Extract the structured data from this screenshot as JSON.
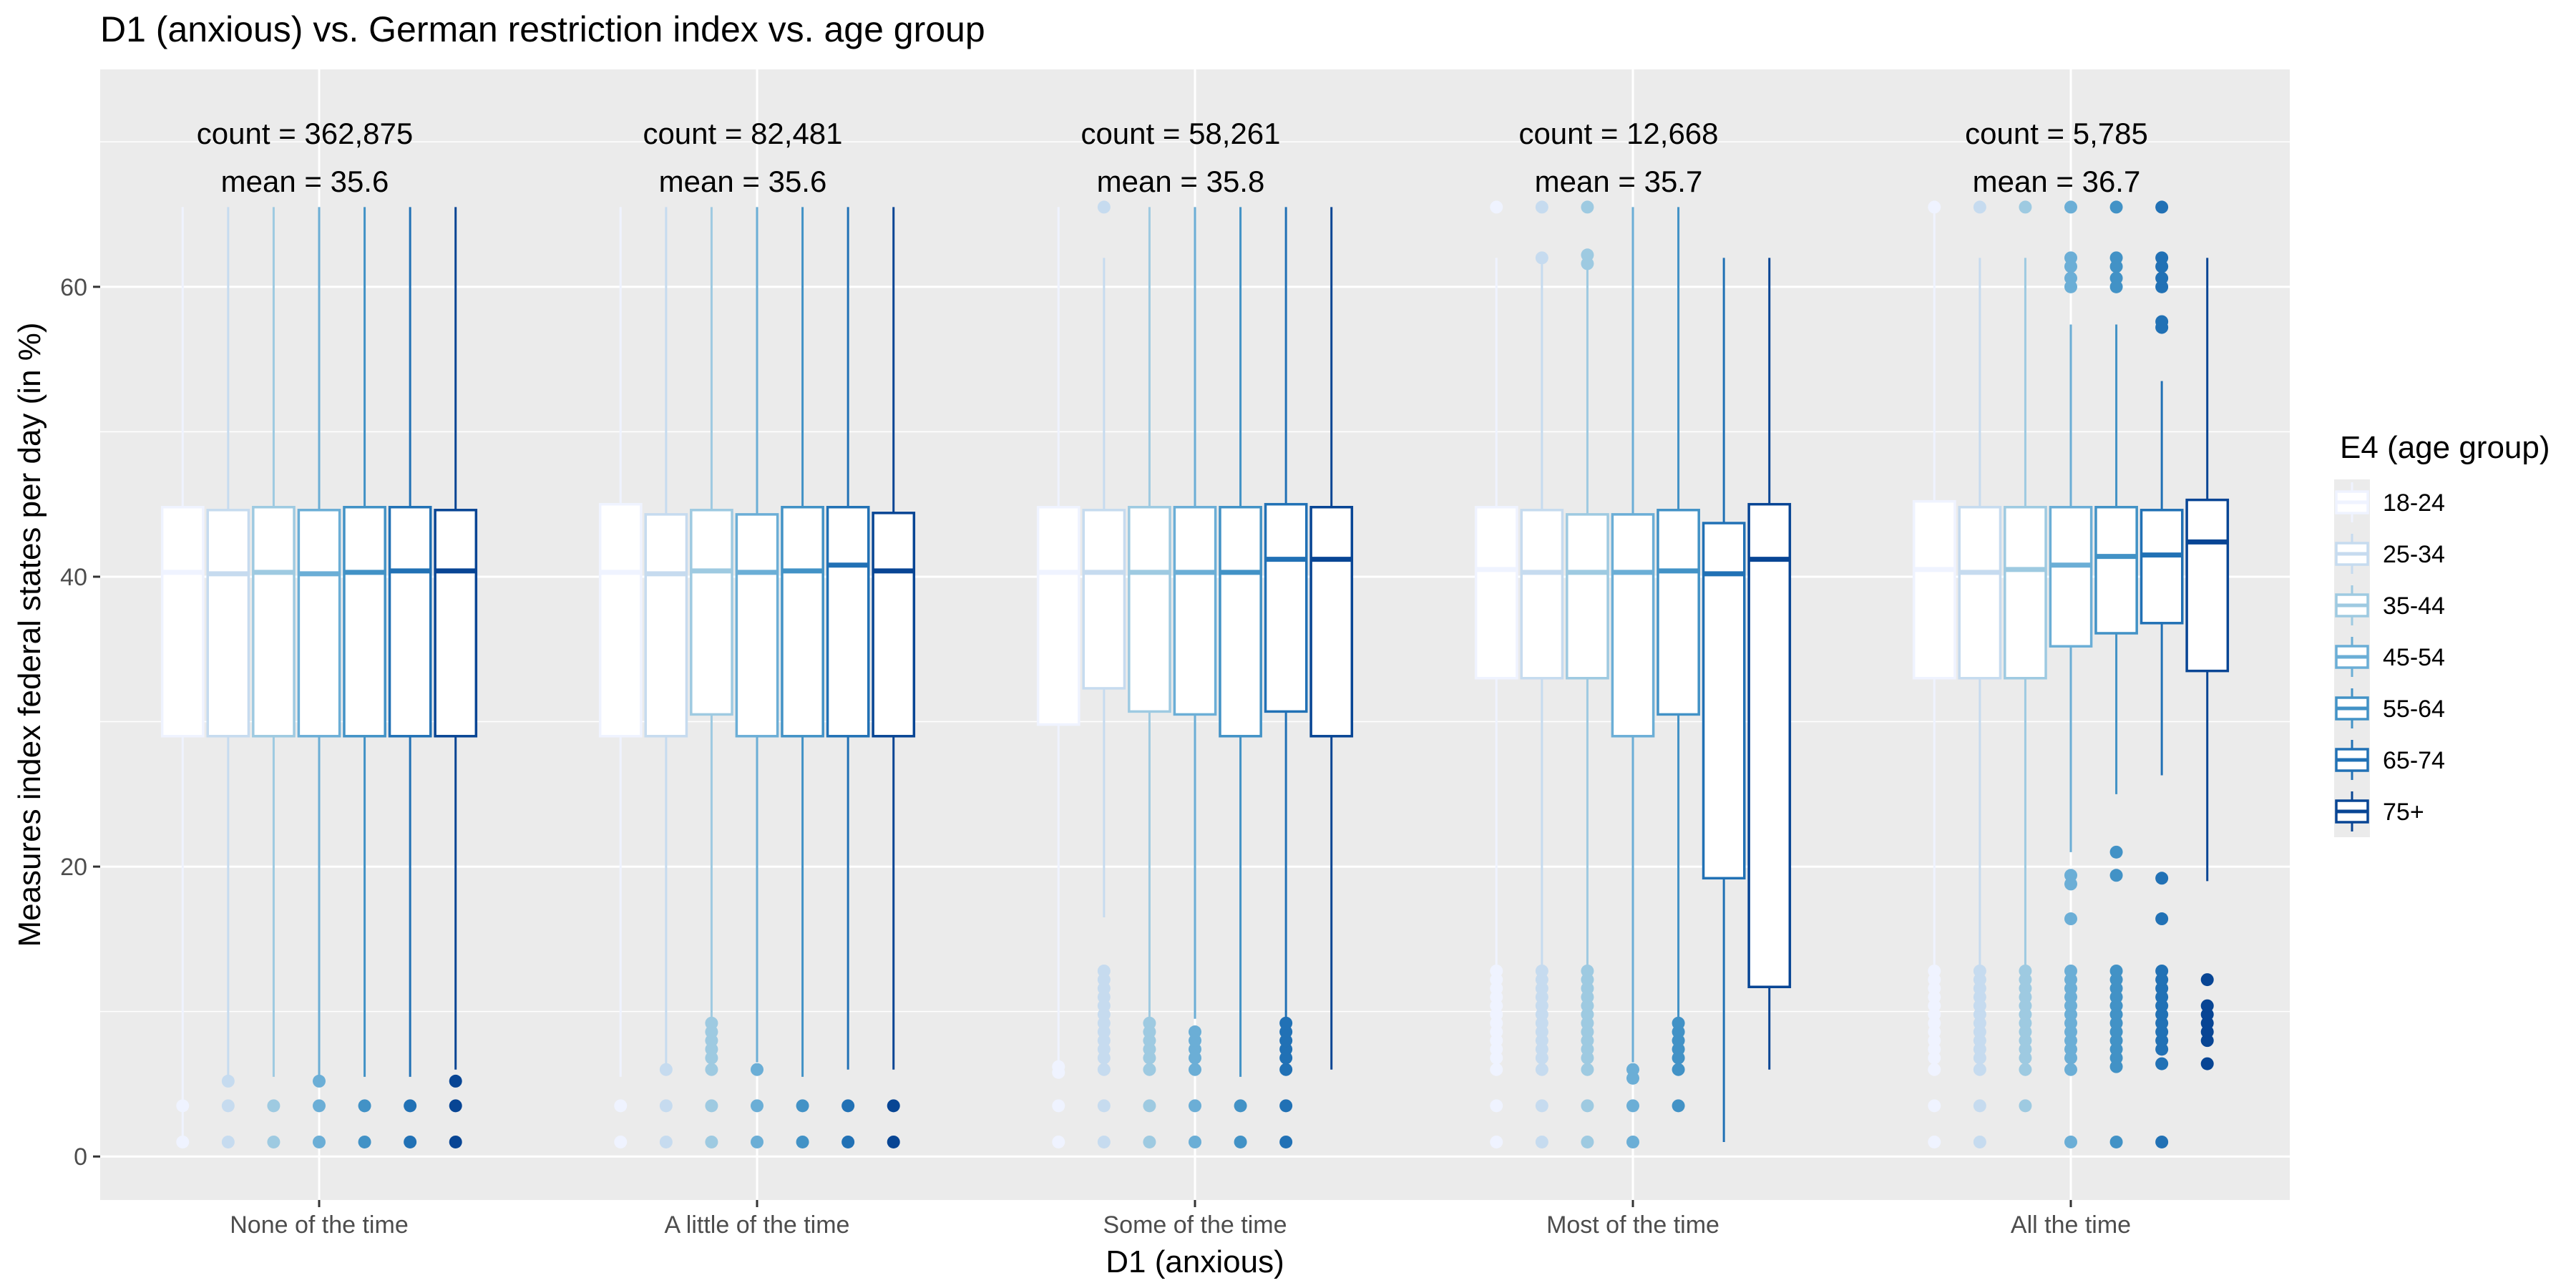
{
  "chart_data": {
    "type": "boxplot",
    "title": "D1 (anxious) vs. German restriction index vs. age group",
    "xlabel": "D1 (anxious)",
    "ylabel": "Measures index federal states per day (in %)",
    "ylim": [
      -3,
      75
    ],
    "y_ticks": [
      0,
      20,
      40,
      60
    ],
    "grid": true,
    "legend_position": "right",
    "legend_title": "E4 (age group)",
    "groups": [
      "18-24",
      "25-34",
      "35-44",
      "45-54",
      "55-64",
      "65-74",
      "75+"
    ],
    "colors": [
      "#eff3ff",
      "#c6dbef",
      "#9ecae1",
      "#6baed6",
      "#4292c6",
      "#2171b5",
      "#084594"
    ],
    "categories": [
      "None of the time",
      "A little of the time",
      "Some of the time",
      "Most of the time",
      "All the time"
    ],
    "annotations": [
      {
        "count": "count = 362,875",
        "mean": "mean = 35.6"
      },
      {
        "count": "count = 82,481",
        "mean": "mean = 35.6"
      },
      {
        "count": "count = 58,261",
        "mean": "mean = 35.8"
      },
      {
        "count": "count = 12,668",
        "mean": "mean = 35.7"
      },
      {
        "count": "count = 5,785",
        "mean": "mean = 36.7"
      }
    ],
    "boxes": [
      [
        {
          "lw": 1,
          "q1": 29,
          "med": 40.3,
          "q3": 44.8,
          "uw": 65.5,
          "out": [
            1,
            3.5
          ]
        },
        {
          "lw": 5.5,
          "q1": 29,
          "med": 40.2,
          "q3": 44.6,
          "uw": 65.5,
          "out": [
            1,
            3.5,
            5.2
          ]
        },
        {
          "lw": 5.5,
          "q1": 29,
          "med": 40.3,
          "q3": 44.8,
          "uw": 65.5,
          "out": [
            1,
            3.5
          ]
        },
        {
          "lw": 5.5,
          "q1": 29,
          "med": 40.2,
          "q3": 44.6,
          "uw": 65.5,
          "out": [
            1,
            3.5,
            5.2
          ]
        },
        {
          "lw": 5.5,
          "q1": 29,
          "med": 40.3,
          "q3": 44.8,
          "uw": 65.5,
          "out": [
            1,
            3.5
          ]
        },
        {
          "lw": 5.5,
          "q1": 29,
          "med": 40.4,
          "q3": 44.8,
          "uw": 65.5,
          "out": [
            1,
            3.5
          ]
        },
        {
          "lw": 6,
          "q1": 29,
          "med": 40.4,
          "q3": 44.6,
          "uw": 65.5,
          "out": [
            1,
            3.5,
            5.2
          ]
        }
      ],
      [
        {
          "lw": 5.5,
          "q1": 29,
          "med": 40.3,
          "q3": 45,
          "uw": 65.5,
          "out": [
            1,
            3.5
          ]
        },
        {
          "lw": 6,
          "q1": 29,
          "med": 40.2,
          "q3": 44.3,
          "uw": 65.5,
          "out": [
            1,
            3.5,
            6
          ]
        },
        {
          "lw": 9.5,
          "q1": 30.5,
          "med": 40.4,
          "q3": 44.6,
          "uw": 65.5,
          "out": [
            1,
            3.5,
            6,
            6.8,
            7.4,
            8,
            8.6,
            9.2
          ]
        },
        {
          "lw": 6.5,
          "q1": 29,
          "med": 40.3,
          "q3": 44.3,
          "uw": 65.5,
          "out": [
            1,
            3.5,
            6
          ]
        },
        {
          "lw": 5.5,
          "q1": 29,
          "med": 40.4,
          "q3": 44.8,
          "uw": 65.5,
          "out": [
            1,
            3.5
          ]
        },
        {
          "lw": 6,
          "q1": 29,
          "med": 40.8,
          "q3": 44.8,
          "uw": 65.5,
          "out": [
            1,
            3.5
          ]
        },
        {
          "lw": 6,
          "q1": 29,
          "med": 40.4,
          "q3": 44.4,
          "uw": 65.5,
          "out": [
            1,
            3.5
          ]
        }
      ],
      [
        {
          "lw": 6.5,
          "q1": 29.8,
          "med": 40.3,
          "q3": 44.8,
          "uw": 65.5,
          "out": [
            1,
            3.5,
            5.8,
            6.2
          ]
        },
        {
          "lw": 16.5,
          "q1": 32.3,
          "med": 40.3,
          "q3": 44.6,
          "uw": 62,
          "out": [
            1,
            3.5,
            6,
            6.8,
            7.4,
            8,
            8.6,
            9.2,
            9.8,
            10.4,
            11,
            11.6,
            12.2,
            12.8,
            65.5
          ]
        },
        {
          "lw": 9.5,
          "q1": 30.7,
          "med": 40.3,
          "q3": 44.8,
          "uw": 65.5,
          "out": [
            1,
            3.5,
            6,
            6.8,
            7.4,
            8,
            8.6,
            9.2
          ]
        },
        {
          "lw": 9.5,
          "q1": 30.5,
          "med": 40.3,
          "q3": 44.8,
          "uw": 65.5,
          "out": [
            1,
            3.5,
            6,
            6.8,
            7.4,
            8,
            8.6
          ]
        },
        {
          "lw": 5.5,
          "q1": 29,
          "med": 40.3,
          "q3": 44.8,
          "uw": 65.5,
          "out": [
            1,
            3.5
          ]
        },
        {
          "lw": 9.5,
          "q1": 30.7,
          "med": 41.2,
          "q3": 45,
          "uw": 65.5,
          "out": [
            1,
            3.5,
            6,
            6.8,
            7.4,
            8,
            8.6,
            9.2
          ]
        },
        {
          "lw": 6,
          "q1": 29,
          "med": 41.2,
          "q3": 44.8,
          "uw": 65.5,
          "out": []
        }
      ],
      [
        {
          "lw": 13,
          "q1": 33,
          "med": 40.5,
          "q3": 44.8,
          "uw": 62,
          "out": [
            1,
            3.5,
            6,
            6.8,
            7.4,
            8,
            8.6,
            9.2,
            9.8,
            10.4,
            11,
            11.6,
            12.2,
            12.8,
            65.5
          ]
        },
        {
          "lw": 13,
          "q1": 33,
          "med": 40.3,
          "q3": 44.6,
          "uw": 62,
          "out": [
            1,
            3.5,
            6,
            6.8,
            7.4,
            8,
            8.6,
            9.2,
            9.8,
            10.4,
            11,
            11.6,
            12.2,
            12.8,
            62,
            65.5
          ]
        },
        {
          "lw": 13,
          "q1": 33,
          "med": 40.3,
          "q3": 44.3,
          "uw": 62,
          "out": [
            1,
            3.5,
            6,
            6.8,
            7.4,
            8,
            8.6,
            9.2,
            9.8,
            10.4,
            11,
            11.6,
            12.2,
            12.8,
            61.6,
            62.2,
            65.5
          ]
        },
        {
          "lw": 6.5,
          "q1": 29,
          "med": 40.3,
          "q3": 44.3,
          "uw": 65.5,
          "out": [
            1,
            3.5,
            5.4,
            6
          ]
        },
        {
          "lw": 9.5,
          "q1": 30.5,
          "med": 40.4,
          "q3": 44.6,
          "uw": 65.5,
          "out": [
            3.5,
            6,
            6.8,
            7.4,
            8,
            8.6,
            9.2
          ]
        },
        {
          "lw": 1,
          "q1": 19.2,
          "med": 40.2,
          "q3": 43.7,
          "uw": 62,
          "out": []
        },
        {
          "lw": 6,
          "q1": 11.7,
          "med": 41.2,
          "q3": 45,
          "uw": 62,
          "out": []
        }
      ],
      [
        {
          "lw": 13,
          "q1": 33,
          "med": 40.5,
          "q3": 45.2,
          "uw": 65.5,
          "out": [
            1,
            3.5,
            6,
            6.8,
            7.4,
            8,
            8.6,
            9.2,
            9.8,
            10.4,
            11,
            11.6,
            12.2,
            12.8,
            65.5
          ]
        },
        {
          "lw": 13,
          "q1": 33,
          "med": 40.3,
          "q3": 44.8,
          "uw": 62,
          "out": [
            1,
            3.5,
            6,
            6.8,
            7.4,
            8,
            8.6,
            9.2,
            9.8,
            10.4,
            11,
            11.6,
            12.2,
            12.8,
            65.5
          ]
        },
        {
          "lw": 13,
          "q1": 33,
          "med": 40.5,
          "q3": 44.8,
          "uw": 62,
          "out": [
            3.5,
            6,
            6.8,
            7.4,
            8,
            8.6,
            9.2,
            9.8,
            10.4,
            11,
            11.6,
            12.2,
            12.8,
            65.5
          ]
        },
        {
          "lw": 21,
          "q1": 35.2,
          "med": 40.8,
          "q3": 44.8,
          "uw": 57.4,
          "out": [
            1,
            6,
            6.8,
            7.4,
            8,
            8.6,
            9.2,
            9.8,
            10.4,
            11,
            11.6,
            12.2,
            12.8,
            16.4,
            18.8,
            19.4,
            60,
            60.6,
            61.4,
            62,
            65.5
          ]
        },
        {
          "lw": 25,
          "q1": 36.1,
          "med": 41.4,
          "q3": 44.8,
          "uw": 57.4,
          "out": [
            1,
            6.2,
            6.8,
            7.4,
            8,
            8.6,
            9.2,
            9.8,
            10.4,
            11,
            11.6,
            12.2,
            12.8,
            19.4,
            21,
            60,
            60.6,
            61.4,
            62,
            65.5
          ]
        },
        {
          "lw": 26.3,
          "q1": 36.8,
          "med": 41.5,
          "q3": 44.6,
          "uw": 53.5,
          "out": [
            1,
            6.4,
            7.4,
            8,
            8.6,
            9.2,
            9.8,
            10.4,
            11,
            11.6,
            12.2,
            12.8,
            16.4,
            19.2,
            57.2,
            57.6,
            60,
            60.6,
            61.4,
            62,
            65.5
          ]
        },
        {
          "lw": 19,
          "q1": 33.5,
          "med": 42.4,
          "q3": 45.3,
          "uw": 62,
          "out": [
            6.4,
            8,
            8.6,
            9.2,
            9.8,
            10.4,
            12.2
          ]
        }
      ]
    ]
  }
}
